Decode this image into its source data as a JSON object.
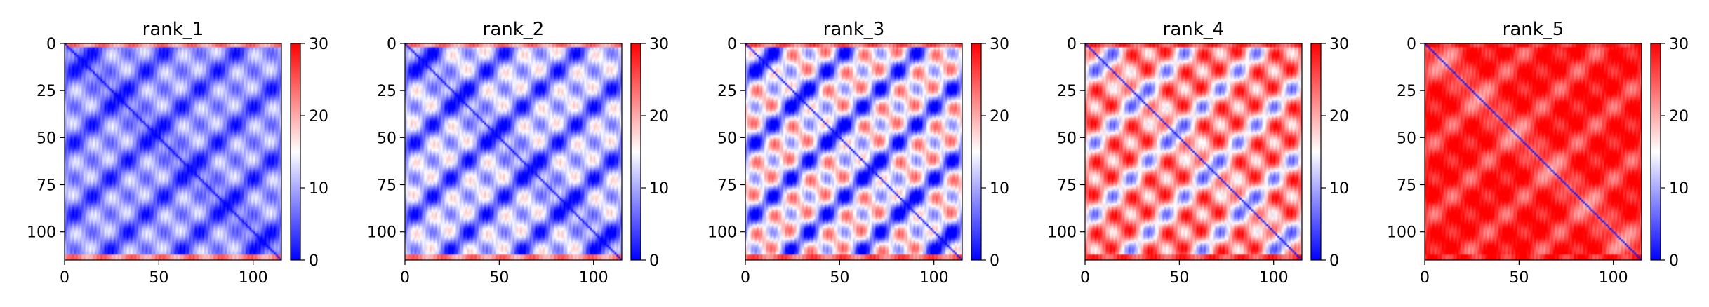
{
  "colormap": {
    "name": "bwr",
    "low": "#0000ff",
    "mid": "#ffffff",
    "high": "#ff0000"
  },
  "chart_data": [
    {
      "type": "heatmap",
      "title": "rank_1",
      "size": 115,
      "xticks": [
        0,
        50,
        100
      ],
      "yticks": [
        0,
        25,
        50,
        75,
        100
      ],
      "colorbar": {
        "vmin": 0,
        "vmax": 30,
        "ticks": [
          0,
          10,
          20,
          30
        ]
      },
      "pattern": {
        "diag": 0,
        "block": 8,
        "base": 8,
        "row_edge": 22
      }
    },
    {
      "type": "heatmap",
      "title": "rank_2",
      "size": 115,
      "xticks": [
        0,
        50,
        100
      ],
      "yticks": [
        0,
        25,
        50,
        75,
        100
      ],
      "colorbar": {
        "vmin": 0,
        "vmax": 30,
        "ticks": [
          0,
          10,
          20,
          30
        ]
      },
      "pattern": {
        "diag": 1,
        "block": 11,
        "base": 10,
        "row_edge": 22
      }
    },
    {
      "type": "heatmap",
      "title": "rank_3",
      "size": 115,
      "xticks": [
        0,
        50,
        100
      ],
      "yticks": [
        0,
        25,
        50,
        75,
        100
      ],
      "colorbar": {
        "vmin": 0,
        "vmax": 30,
        "ticks": [
          0,
          10,
          20,
          30
        ]
      },
      "pattern": {
        "diag": 1,
        "block": 16,
        "base": 13,
        "row_edge": 24
      }
    },
    {
      "type": "heatmap",
      "title": "rank_4",
      "size": 115,
      "xticks": [
        0,
        50,
        100
      ],
      "yticks": [
        0,
        25,
        50,
        75,
        100
      ],
      "colorbar": {
        "vmin": 0,
        "vmax": 30,
        "ticks": [
          0,
          10,
          20,
          30
        ]
      },
      "pattern": {
        "diag": 2,
        "block": 14,
        "base": 20,
        "row_edge": 26
      }
    },
    {
      "type": "heatmap",
      "title": "rank_5",
      "size": 115,
      "xticks": [
        0,
        50,
        100
      ],
      "yticks": [
        0,
        25,
        50,
        75,
        100
      ],
      "colorbar": {
        "vmin": 0,
        "vmax": 30,
        "ticks": [
          0,
          10,
          20,
          30
        ]
      },
      "pattern": {
        "diag": 2,
        "block": 6,
        "base": 28,
        "row_edge": 28
      }
    }
  ]
}
